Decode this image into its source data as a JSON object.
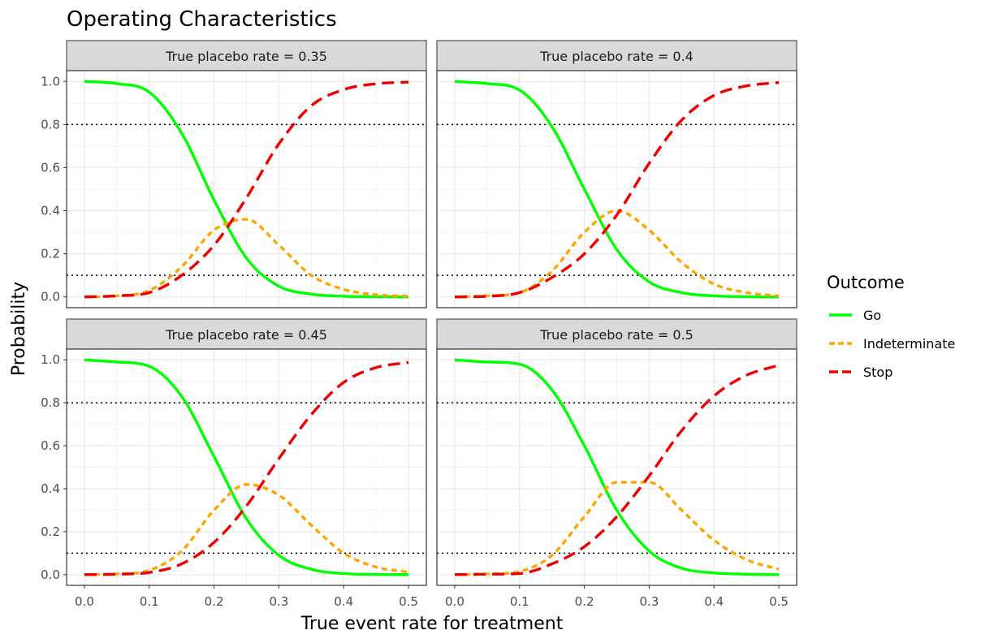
{
  "chart_data": {
    "type": "line",
    "title": "Operating Characteristics",
    "xlabel": "True event rate for treatment",
    "ylabel": "Probability",
    "xlim": [
      -0.0275,
      0.5275
    ],
    "ylim": [
      -0.05,
      1.05
    ],
    "x_ticks": [
      0.0,
      0.1,
      0.2,
      0.3,
      0.4,
      0.5
    ],
    "y_ticks": [
      0.0,
      0.2,
      0.4,
      0.6,
      0.8,
      1.0
    ],
    "x_tick_labels": [
      "0.0",
      "0.1",
      "0.2",
      "0.3",
      "0.4",
      "0.5"
    ],
    "y_tick_labels": [
      "0.0",
      "0.2",
      "0.4",
      "0.6",
      "0.8",
      "1.0"
    ],
    "grid": true,
    "reference_lines": [
      0.8,
      0.1
    ],
    "legend": {
      "title": "Outcome",
      "position": "right",
      "entries": [
        {
          "name": "Go",
          "color": "#00ff00",
          "dash": "solid"
        },
        {
          "name": "Indeterminate",
          "color": "#ffa500",
          "dash": "dotted"
        },
        {
          "name": "Stop",
          "color": "#ee0000",
          "dash": "dashed"
        }
      ]
    },
    "x": [
      0.0,
      0.05,
      0.1,
      0.15,
      0.2,
      0.25,
      0.3,
      0.35,
      0.4,
      0.45,
      0.5
    ],
    "panels": [
      {
        "label": "True placebo rate = 0.35",
        "series": [
          {
            "name": "Go",
            "values": [
              1.0,
              0.99,
              0.95,
              0.76,
              0.45,
              0.18,
              0.05,
              0.013,
              0.003,
              0.001,
              0.0
            ]
          },
          {
            "name": "Indeterminate",
            "values": [
              0.0,
              0.005,
              0.03,
              0.14,
              0.31,
              0.36,
              0.24,
              0.1,
              0.035,
              0.01,
              0.003
            ]
          },
          {
            "name": "Stop",
            "values": [
              0.0,
              0.005,
              0.02,
              0.1,
              0.24,
              0.46,
              0.71,
              0.887,
              0.962,
              0.989,
              0.997
            ]
          }
        ]
      },
      {
        "label": "True placebo rate = 0.4",
        "series": [
          {
            "name": "Go",
            "values": [
              1.0,
              0.99,
              0.96,
              0.79,
              0.5,
              0.22,
              0.07,
              0.02,
              0.005,
              0.001,
              0.0
            ]
          },
          {
            "name": "Indeterminate",
            "values": [
              0.0,
              0.005,
              0.02,
              0.12,
              0.3,
              0.4,
              0.31,
              0.16,
              0.06,
              0.02,
              0.005
            ]
          },
          {
            "name": "Stop",
            "values": [
              0.0,
              0.003,
              0.02,
              0.09,
              0.2,
              0.38,
              0.62,
              0.82,
              0.935,
              0.979,
              0.995
            ]
          }
        ]
      },
      {
        "label": "True placebo rate = 0.45",
        "series": [
          {
            "name": "Go",
            "values": [
              1.0,
              0.99,
              0.97,
              0.83,
              0.55,
              0.26,
              0.09,
              0.025,
              0.005,
              0.001,
              0.0
            ]
          },
          {
            "name": "Indeterminate",
            "values": [
              0.0,
              0.003,
              0.02,
              0.11,
              0.3,
              0.42,
              0.37,
              0.23,
              0.1,
              0.035,
              0.012
            ]
          },
          {
            "name": "Stop",
            "values": [
              0.0,
              0.002,
              0.01,
              0.05,
              0.15,
              0.32,
              0.54,
              0.745,
              0.895,
              0.964,
              0.988
            ]
          }
        ]
      },
      {
        "label": "True placebo rate = 0.5",
        "series": [
          {
            "name": "Go",
            "values": [
              1.0,
              0.99,
              0.98,
              0.86,
              0.6,
              0.3,
              0.11,
              0.03,
              0.008,
              0.002,
              0.0
            ]
          },
          {
            "name": "Indeterminate",
            "values": [
              0.0,
              0.003,
              0.015,
              0.09,
              0.27,
              0.43,
              0.43,
              0.3,
              0.16,
              0.07,
              0.025
            ]
          },
          {
            "name": "Stop",
            "values": [
              0.0,
              0.002,
              0.005,
              0.05,
              0.13,
              0.27,
              0.46,
              0.67,
              0.832,
              0.928,
              0.975
            ]
          }
        ]
      }
    ]
  }
}
